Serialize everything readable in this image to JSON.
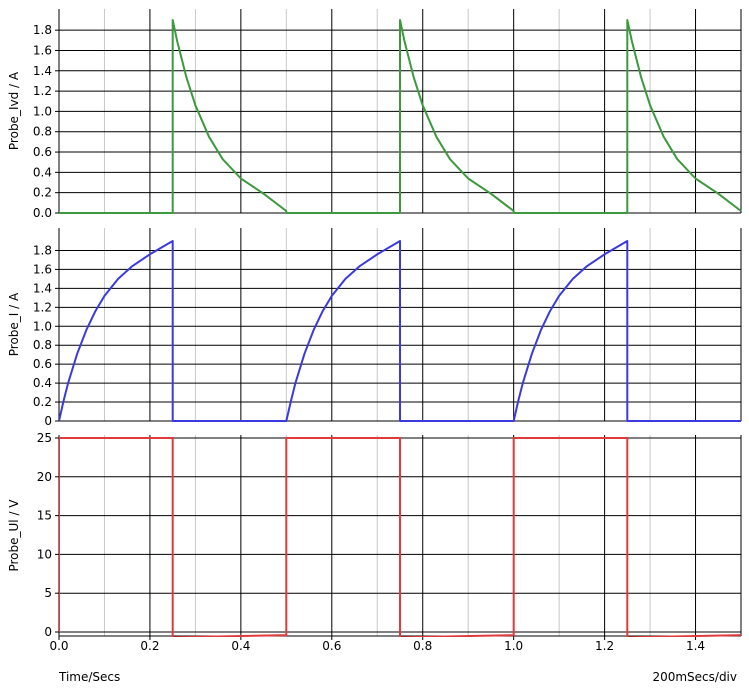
{
  "footer": {
    "time_label": "Time/Secs",
    "div_label": "200mSecs/div"
  },
  "chart_data": [
    {
      "type": "line",
      "ylabel": "Probe_Ivd / A",
      "color": "#3c9a3c",
      "xlim": [
        0,
        1.5
      ],
      "ylim": [
        0,
        1.9
      ],
      "yticks": [
        "0.0",
        "0.2",
        "0.4",
        "0.6",
        "0.8",
        "1.0",
        "1.2",
        "1.4",
        "1.6",
        "1.8"
      ],
      "waveform": "decay",
      "series": [
        {
          "x": [
            0,
            0.25,
            0.25,
            0.26,
            0.28,
            0.3,
            0.33,
            0.36,
            0.4,
            0.45,
            0.5,
            0.5,
            0.75,
            0.75,
            0.76,
            0.78,
            0.8,
            0.83,
            0.86,
            0.9,
            0.95,
            1.0,
            1.0,
            1.25,
            1.25,
            1.26,
            1.28,
            1.3,
            1.33,
            1.36,
            1.4,
            1.45,
            1.5
          ],
          "y": [
            0,
            0,
            1.9,
            1.69,
            1.34,
            1.06,
            0.75,
            0.53,
            0.34,
            0.19,
            0.02,
            0,
            0,
            1.9,
            1.69,
            1.34,
            1.06,
            0.75,
            0.53,
            0.34,
            0.19,
            0.02,
            0,
            0,
            1.9,
            1.69,
            1.34,
            1.06,
            0.75,
            0.53,
            0.34,
            0.19,
            0.02
          ]
        }
      ]
    },
    {
      "type": "line",
      "ylabel": "Probe_I / A",
      "color": "#3a3ae0",
      "xlim": [
        0,
        1.5
      ],
      "ylim": [
        0,
        1.9
      ],
      "yticks": [
        "0",
        "0.2",
        "0.4",
        "0.6",
        "0.8",
        "1.0",
        "1.2",
        "1.4",
        "1.6",
        "1.8"
      ],
      "waveform": "charge",
      "series": [
        {
          "x": [
            0,
            0.01,
            0.02,
            0.04,
            0.06,
            0.08,
            0.1,
            0.13,
            0.16,
            0.2,
            0.25,
            0.25,
            0.5,
            0.5,
            0.51,
            0.52,
            0.54,
            0.56,
            0.58,
            0.6,
            0.63,
            0.66,
            0.7,
            0.75,
            0.75,
            1.0,
            1.0,
            1.01,
            1.02,
            1.04,
            1.06,
            1.08,
            1.1,
            1.13,
            1.16,
            1.2,
            1.25,
            1.25,
            1.5
          ],
          "y": [
            0,
            0.21,
            0.4,
            0.71,
            0.96,
            1.16,
            1.32,
            1.5,
            1.63,
            1.76,
            1.9,
            0,
            0,
            0,
            0.21,
            0.4,
            0.71,
            0.96,
            1.16,
            1.32,
            1.5,
            1.63,
            1.76,
            1.9,
            0,
            0,
            0,
            0.21,
            0.4,
            0.71,
            0.96,
            1.16,
            1.32,
            1.5,
            1.63,
            1.76,
            1.9,
            0,
            0
          ]
        }
      ]
    },
    {
      "type": "line",
      "ylabel": "Probe_Ul / V",
      "color": "#e03a3a",
      "xlim": [
        0,
        1.5
      ],
      "ylim": [
        0,
        25
      ],
      "yticks": [
        "0",
        "5",
        "10",
        "15",
        "20",
        "25"
      ],
      "xticks": [
        "0.0",
        "0.2",
        "0.4",
        "0.6",
        "0.8",
        "1.0",
        "1.2",
        "1.4"
      ],
      "waveform": "square",
      "series": [
        {
          "x": [
            0,
            0,
            0.25,
            0.25,
            0.5,
            0.5,
            0.75,
            0.75,
            1.0,
            1.0,
            1.25,
            1.25,
            1.5
          ],
          "y": [
            0,
            25,
            25,
            -0.7,
            -0.4,
            25,
            25,
            -0.7,
            -0.4,
            25,
            25,
            -0.7,
            -0.4
          ]
        }
      ]
    }
  ]
}
